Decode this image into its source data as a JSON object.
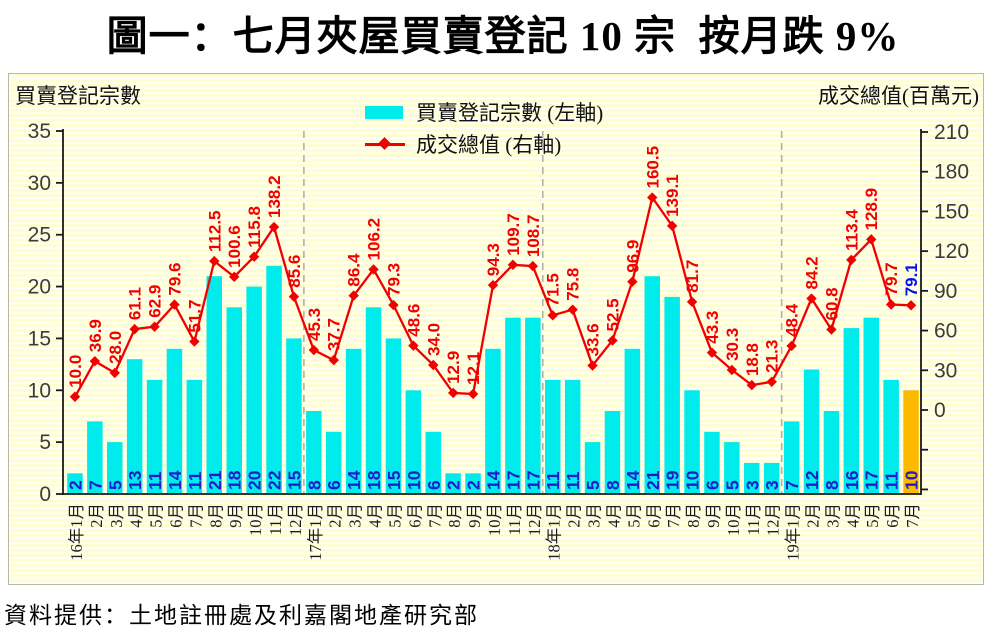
{
  "page": {
    "title": "圖一：七月夾屋買賣登記 10 宗  按月跌 9%",
    "footer": "資料提供：土地註冊處及利嘉閣地產研究部"
  },
  "colors": {
    "bar": "#00ECEC",
    "bar_highlight": "#FBBA00",
    "bar_label": "#1D1DCE",
    "line": "#F20000",
    "line_label": "#F20000",
    "line_last_label": "#0010EE",
    "axis": "#1a1a1a",
    "tick_label": "#3c3c3c",
    "year_separator": "#b0b0b0",
    "panel_background": "#FFFDD2"
  },
  "chart_data": {
    "type": "bar+line",
    "categories": [
      "16年1月",
      "2月",
      "3月",
      "4月",
      "5月",
      "6月",
      "7月",
      "8月",
      "9月",
      "10月",
      "11月",
      "12月",
      "17年1月",
      "2月",
      "3月",
      "4月",
      "5月",
      "6月",
      "7月",
      "8月",
      "9月",
      "10月",
      "11月",
      "12月",
      "18年1月",
      "2月",
      "3月",
      "4月",
      "5月",
      "6月",
      "7月",
      "8月",
      "9月",
      "10月",
      "11月",
      "12月",
      "19年1月",
      "2月",
      "3月",
      "4月",
      "5月",
      "6月",
      "7月"
    ],
    "series": [
      {
        "name": "買賣登記宗數 (左軸)",
        "type": "bar",
        "axis": "left",
        "values": [
          2,
          7,
          5,
          13,
          11,
          14,
          11,
          21,
          18,
          20,
          22,
          15,
          8,
          6,
          14,
          18,
          15,
          10,
          6,
          2,
          2,
          14,
          17,
          17,
          11,
          11,
          5,
          8,
          14,
          21,
          19,
          10,
          6,
          5,
          3,
          3,
          7,
          12,
          8,
          16,
          17,
          11,
          10
        ],
        "highlight_last": true
      },
      {
        "name": "成交總值 (右軸)",
        "type": "line",
        "axis": "right",
        "values": [
          10.0,
          36.9,
          28.0,
          61.1,
          62.9,
          79.6,
          51.7,
          112.5,
          100.6,
          115.8,
          138.2,
          85.6,
          45.3,
          37.7,
          86.4,
          106.2,
          79.3,
          48.6,
          34.0,
          12.9,
          12.1,
          94.3,
          109.7,
          108.7,
          71.5,
          75.8,
          33.6,
          52.5,
          96.9,
          160.5,
          139.1,
          81.7,
          43.3,
          30.3,
          18.8,
          21.3,
          48.4,
          84.2,
          60.8,
          113.4,
          128.9,
          79.7,
          79.1
        ],
        "label_decimals": 1,
        "last_label_highlighted": true
      }
    ],
    "left_axis": {
      "title": "買賣登記宗數",
      "min": 0,
      "max": 35,
      "step": 5
    },
    "right_axis": {
      "title": "成交總值(百萬元)",
      "min": 0,
      "max": 210,
      "step": 30
    },
    "year_separator_boundaries": [
      12,
      24,
      36
    ],
    "grid": false,
    "legend_position": "top-center"
  }
}
